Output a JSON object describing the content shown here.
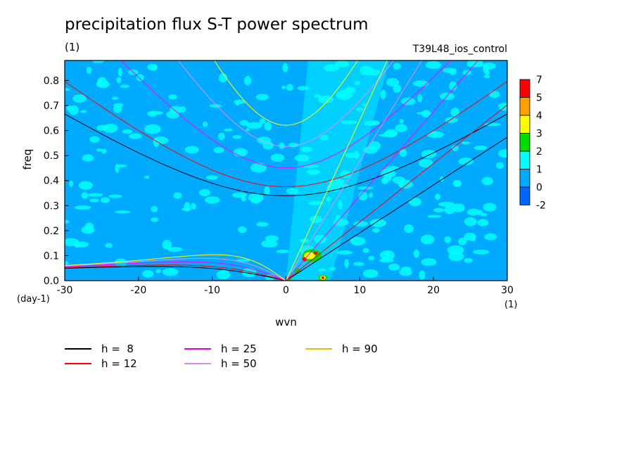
{
  "title": "precipitation flux S-T power spectrum",
  "units_label": "(1)",
  "run_label": "T39L48_ios_control",
  "chart_data": {
    "type": "heatmap",
    "xlabel": "wvn",
    "ylabel": "freq",
    "xunit": "(1)",
    "yunit": "(day-1)",
    "xlim": [
      -30,
      30
    ],
    "ylim": [
      0,
      0.88
    ],
    "xticks": [
      -30,
      -20,
      -10,
      0,
      10,
      20,
      30
    ],
    "yticks": [
      0.0,
      0.1,
      0.2,
      0.3,
      0.4,
      0.5,
      0.6,
      0.7,
      0.8
    ],
    "colorbar": {
      "labels": [
        "7",
        "5",
        "4",
        "3",
        "2",
        "1",
        "0",
        "-2"
      ],
      "colors": [
        "#ff0000",
        "#ffa000",
        "#ffff00",
        "#00dd00",
        "#00ffff",
        "#00aaff",
        "#0066ff"
      ]
    },
    "background_level_color": "#00aaff",
    "series": [
      {
        "name": "h =  8",
        "h": 8,
        "color": "#000000"
      },
      {
        "name": "h = 12",
        "h": 12,
        "color": "#ff0000"
      },
      {
        "name": "h = 25",
        "h": 25,
        "color": "#ff00ff"
      },
      {
        "name": "h = 50",
        "h": 50,
        "color": "#e090ff"
      },
      {
        "name": "h = 90",
        "h": 90,
        "color": "#ffff00"
      }
    ],
    "series_legend_colors": [
      "#000000",
      "#ff0000",
      "#e000e0",
      "#d090e0",
      "#e0c000"
    ]
  }
}
